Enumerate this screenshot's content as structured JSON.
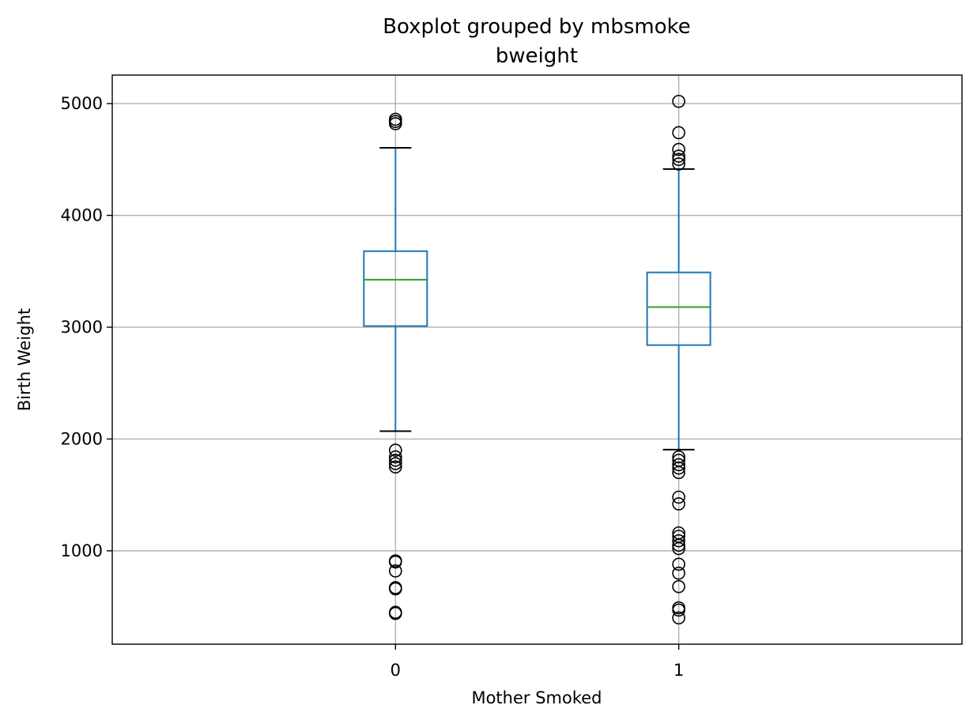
{
  "chart_data": {
    "type": "boxplot",
    "title": "Boxplot grouped by mbsmoke",
    "subtitle": "bweight",
    "xlabel": "Mother Smoked",
    "ylabel": "Birth Weight",
    "categories": [
      "0",
      "1"
    ],
    "yticks": [
      1000,
      2000,
      3000,
      4000,
      5000
    ],
    "ylim": [
      165,
      5255
    ],
    "grid": true,
    "colors": {
      "box": "#1f77b4",
      "median": "#2ca02c",
      "cap": "#000000",
      "flier": "#000000",
      "grid": "#b0b0b0"
    },
    "boxes": [
      {
        "category": "0",
        "whisker_low": 2070,
        "q1": 3010,
        "median": 3425,
        "q3": 3680,
        "whisker_high": 4605,
        "outliers": [
          4820,
          4840,
          4860,
          1900,
          1840,
          1810,
          1780,
          1750,
          910,
          900,
          820,
          670,
          660,
          450,
          440
        ]
      },
      {
        "category": "1",
        "whisker_low": 1905,
        "q1": 2840,
        "median": 3180,
        "q3": 3490,
        "whisker_high": 4415,
        "outliers": [
          5020,
          4740,
          4590,
          4530,
          4500,
          4460,
          1840,
          1810,
          1770,
          1740,
          1700,
          1480,
          1420,
          1160,
          1130,
          1090,
          1050,
          1020,
          880,
          800,
          680,
          490,
          470,
          400
        ]
      }
    ]
  }
}
